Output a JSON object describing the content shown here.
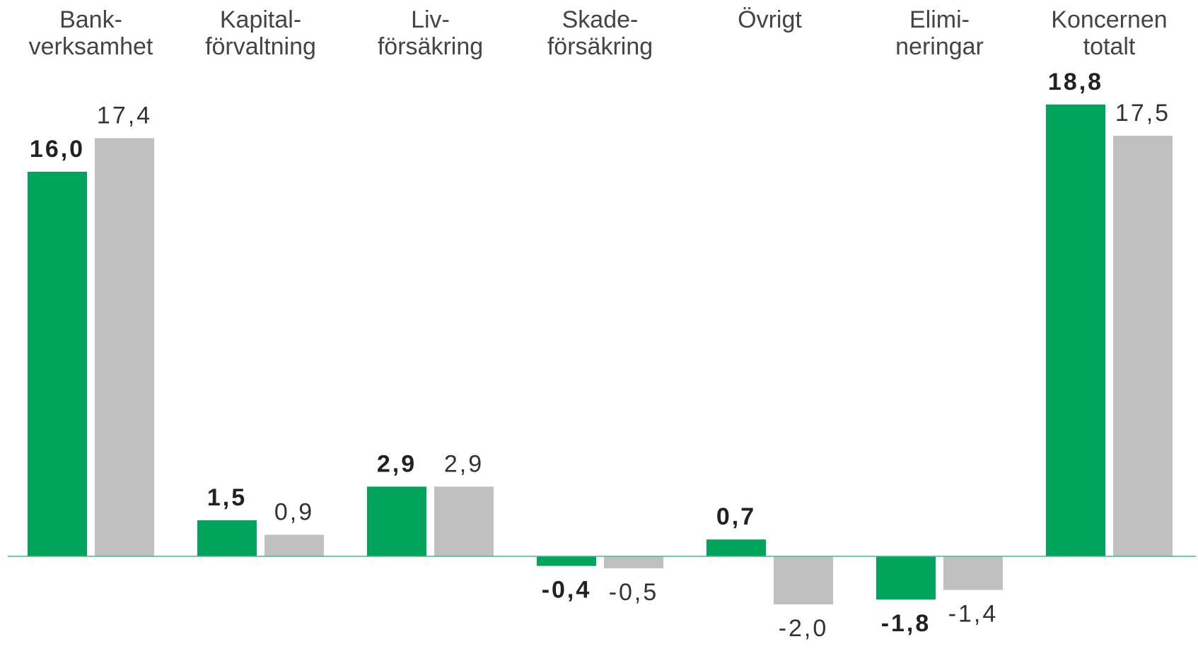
{
  "chart_data": {
    "type": "bar",
    "categories": [
      "Bank-\nverksamhet",
      "Kapital-\nförvaltning",
      "Liv-\nförsäkring",
      "Skade-\nförsäkring",
      "Övrigt",
      "Elimi-\nneringar",
      "Koncernen\ntotalt"
    ],
    "series": [
      {
        "color": "#00a45a",
        "values": [
          16.0,
          1.5,
          2.9,
          -0.4,
          0.7,
          -1.8,
          18.8
        ],
        "value_labels": [
          "16,0",
          "1,5",
          "2,9",
          "-0,4",
          "0,7",
          "-1,8",
          "18,8"
        ]
      },
      {
        "color": "#c0c0c0",
        "values": [
          17.4,
          0.9,
          2.9,
          -0.5,
          -2.0,
          -1.4,
          17.5
        ],
        "value_labels": [
          "17,4",
          "0,9",
          "2,9",
          "-0,5",
          "-2,0",
          "-1,4",
          "17,5"
        ]
      }
    ]
  }
}
